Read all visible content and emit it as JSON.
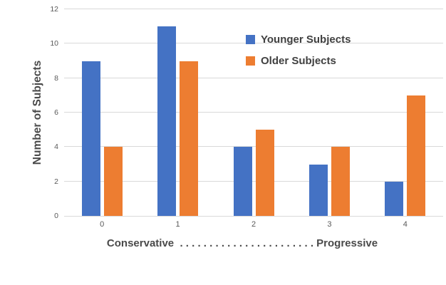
{
  "chart_data": {
    "type": "bar",
    "categories": [
      "0",
      "1",
      "2",
      "3",
      "4"
    ],
    "series": [
      {
        "name": "Younger Subjects",
        "color": "#4472C4",
        "values": [
          9,
          11,
          4,
          3,
          2
        ]
      },
      {
        "name": "Older Subjects",
        "color": "#ED7D31",
        "values": [
          4,
          9,
          5,
          4,
          7
        ]
      }
    ],
    "title": "",
    "xlabel": "Conservative  . . . . . . . . . . . . . . . . . . . . . . . Progressive",
    "ylabel": "Number of Subjects",
    "ylim": [
      0,
      12
    ],
    "yticks": [
      0,
      2,
      4,
      6,
      8,
      10,
      12
    ],
    "grid": true,
    "legend_position": "inside-top-right",
    "colors": {
      "gridline": "#d9d9d9",
      "axis_line": "#d9d9d9",
      "tick_text": "#595959",
      "label_text": "#4a4a4a",
      "background": "#ffffff"
    }
  }
}
